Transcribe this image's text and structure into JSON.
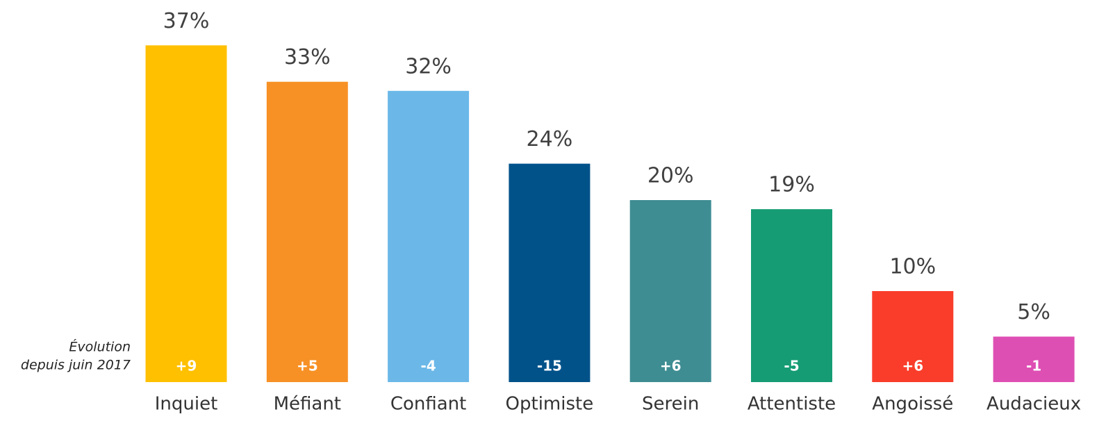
{
  "chart_data": {
    "type": "bar",
    "categories": [
      "Inquiet",
      "Méfiant",
      "Confiant",
      "Optimiste",
      "Serein",
      "Attentiste",
      "Angoissé",
      "Audacieux"
    ],
    "values": [
      37,
      33,
      32,
      24,
      20,
      19,
      10,
      5
    ],
    "value_labels": [
      "37%",
      "33%",
      "32%",
      "24%",
      "20%",
      "19%",
      "10%",
      "5%"
    ],
    "colors": [
      "#ffc000",
      "#f79125",
      "#6bb8e8",
      "#02528a",
      "#3e8d93",
      "#169c74",
      "#f93d2a",
      "#de4fb3"
    ],
    "evolution_title": [
      "Évolution",
      "depuis juin 2017"
    ],
    "evolution": [
      9,
      5,
      -4,
      -15,
      6,
      -5,
      6,
      -1
    ],
    "evolution_labels": [
      "+9",
      "+5",
      "-4",
      "-15",
      "+6",
      "-5",
      "+6",
      "-1"
    ]
  }
}
